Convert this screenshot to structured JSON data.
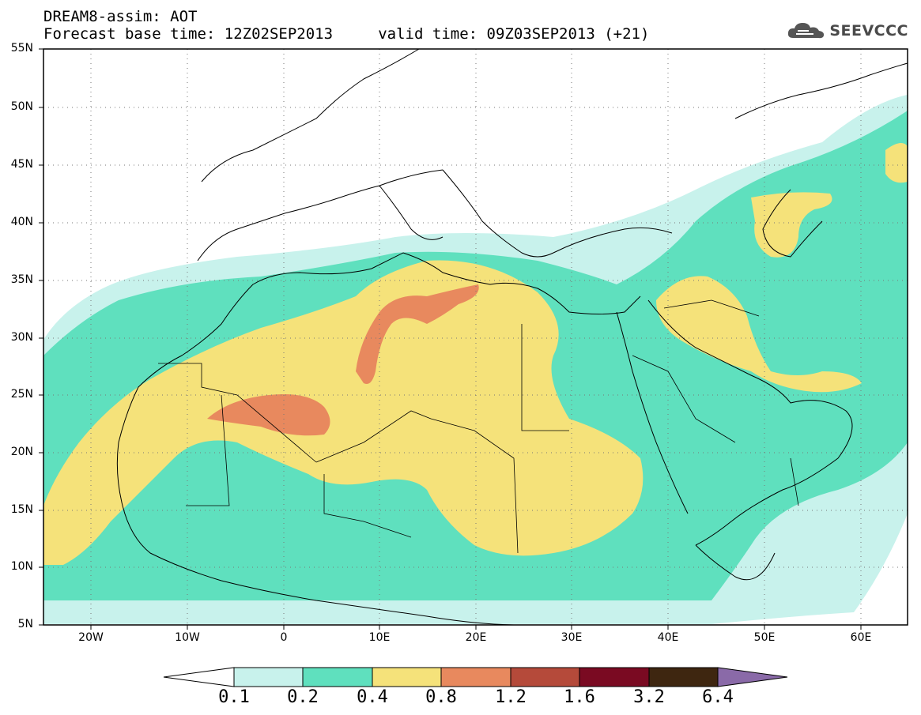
{
  "header": {
    "title_line1": "DREAM8-assim: AOT",
    "title_line2": "Forecast base time: 12Z02SEP2013     valid time: 09Z03SEP2013 (+21)",
    "logo_text": "SEEVCCC"
  },
  "map": {
    "lat_labels": [
      "55N",
      "50N",
      "45N",
      "40N",
      "35N",
      "30N",
      "25N",
      "20N",
      "15N",
      "10N",
      "5N"
    ],
    "lon_labels": [
      "20W",
      "10W",
      "0",
      "10E",
      "20E",
      "30E",
      "40E",
      "50E",
      "60E"
    ]
  },
  "colorbar": {
    "labels": [
      "0.1",
      "0.2",
      "0.4",
      "0.8",
      "1.2",
      "1.6",
      "3.2",
      "6.4"
    ],
    "colors": [
      "#ffffff",
      "#c8f2ec",
      "#5fe0be",
      "#f5e27a",
      "#e8895e",
      "#b54a3a",
      "#7a0a22",
      "#3e2610",
      "#8a6aa8"
    ]
  }
}
